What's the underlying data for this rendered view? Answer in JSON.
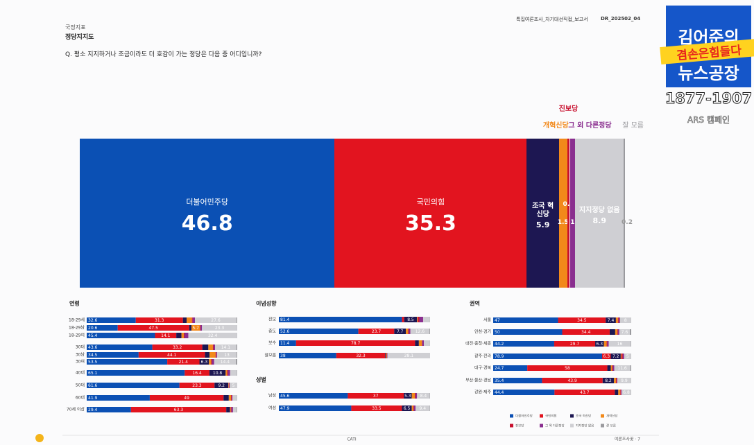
{
  "header": {
    "category": "국정지표",
    "title": "정당지지도",
    "question": "Q. 평소 지지하거나 조금이라도 더 호감이 가는 정당은 다음 중 어디입니까?",
    "report": "특집여론조사_차기대선직접_보고서",
    "code": "DR_202502_04"
  },
  "logo": {
    "line1": "김어준의",
    "line2": "겸손은힘들다",
    "line3": "뉴스공장",
    "phone": "1877-1907",
    "campaign": "ARS 캠페인"
  },
  "footer": {
    "method": "CATI",
    "page": "여론조사꽃 · 7"
  },
  "chart_data": [
    {
      "type": "stacked-bar-100",
      "categories": [
        "더불어민주당",
        "국민의힘",
        "조국 혁신당",
        "개혁신당",
        "진보당",
        "그 외 다른정당",
        "지지정당 없음",
        "잘 모름"
      ],
      "values": [
        46.8,
        35.3,
        5.9,
        1.5,
        0.5,
        1.0,
        8.9,
        0.2
      ],
      "colors": [
        "#0b50b4",
        "#e2141f",
        "#1d1752",
        "#f2891a",
        "#c8102e",
        "#8a2e8f",
        "#cfcfd3",
        "#9a9a9e"
      ],
      "xlim": [
        0,
        100
      ]
    },
    {
      "type": "stacked-bar-h",
      "title": "연령",
      "categories": [
        "18-29세",
        "18-29남",
        "18-29여",
        "30대",
        "30남",
        "30여",
        "40대",
        "50대",
        "60대",
        "70세 이상"
      ],
      "values": [
        [
          32.6,
          31.3,
          2.5,
          3.5,
          0.5,
          1.5,
          27.6,
          0.5
        ],
        [
          20.6,
          47.5,
          1.5,
          5.7,
          0.3,
          1.0,
          23.3,
          0.1
        ],
        [
          45.4,
          14.1,
          3.5,
          1.5,
          0.5,
          2.5,
          32.4,
          0.1
        ],
        [
          43.6,
          33.2,
          4.0,
          3.0,
          0.5,
          1.0,
          14.1,
          0.6
        ],
        [
          34.5,
          44.1,
          3.0,
          4.0,
          0.5,
          0.5,
          13.0,
          0.4
        ],
        [
          53.5,
          21.4,
          6.3,
          1.5,
          0.5,
          1.5,
          14.4,
          0.9
        ],
        [
          65.1,
          16.4,
          10.8,
          1.0,
          0.5,
          1.5,
          4.5,
          0.2
        ],
        [
          61.6,
          23.3,
          9.2,
          0.3,
          0.3,
          0.3,
          5.0,
          0.0
        ],
        [
          41.9,
          49.0,
          3.5,
          1.5,
          0.5,
          0.5,
          3.0,
          0.1
        ],
        [
          29.4,
          63.3,
          2.5,
          0.5,
          0.5,
          1.0,
          2.5,
          0.3
        ]
      ],
      "xlim": [
        0,
        100
      ]
    },
    {
      "type": "stacked-bar-h",
      "title": "이념성향",
      "categories": [
        "진보",
        "중도",
        "보수",
        "잘모름"
      ],
      "values": [
        [
          81.4,
          1.5,
          8.5,
          0.5,
          1.0,
          2.5,
          4.5,
          0.1
        ],
        [
          52.6,
          23.7,
          7.7,
          1.5,
          0.5,
          1.0,
          12.6,
          0.4
        ],
        [
          11.4,
          78.7,
          2.5,
          2.0,
          0.3,
          1.0,
          4.0,
          0.1
        ],
        [
          38.0,
          32.3,
          0.5,
          0.5,
          0.3,
          0.3,
          28.1,
          0.0
        ]
      ],
      "xlim": [
        0,
        100
      ]
    },
    {
      "type": "stacked-bar-h",
      "title": "성별",
      "categories": [
        "남성",
        "여성"
      ],
      "values": [
        [
          45.6,
          37.0,
          5.3,
          2.0,
          0.5,
          1.0,
          8.4,
          0.2
        ],
        [
          47.9,
          33.5,
          6.5,
          1.0,
          0.5,
          1.0,
          9.4,
          0.2
        ]
      ],
      "xlim": [
        0,
        100
      ]
    },
    {
      "type": "stacked-bar-h",
      "title": "권역",
      "categories": [
        "서울",
        "인천·경기",
        "대전·충청·세종",
        "광주·전라",
        "대구·경북",
        "부산·울산·경남",
        "강원·제주"
      ],
      "values": [
        [
          47.0,
          34.5,
          7.4,
          1.5,
          0.5,
          1.0,
          8.0,
          0.1
        ],
        [
          50.0,
          34.4,
          4.0,
          1.5,
          0.5,
          1.0,
          7.6,
          1.0
        ],
        [
          44.2,
          29.7,
          6.3,
          2.0,
          0.5,
          1.0,
          16.0,
          0.3
        ],
        [
          78.9,
          6.3,
          7.2,
          0.5,
          1.0,
          1.0,
          5.0,
          0.1
        ],
        [
          24.7,
          58.0,
          2.5,
          1.0,
          0.5,
          1.0,
          11.6,
          0.7
        ],
        [
          35.4,
          43.9,
          8.2,
          1.5,
          0.5,
          0.5,
          9.9,
          0.1
        ],
        [
          44.4,
          43.7,
          2.5,
          1.5,
          0.5,
          0.5,
          6.8,
          0.1
        ]
      ],
      "xlim": [
        0,
        100
      ]
    }
  ]
}
